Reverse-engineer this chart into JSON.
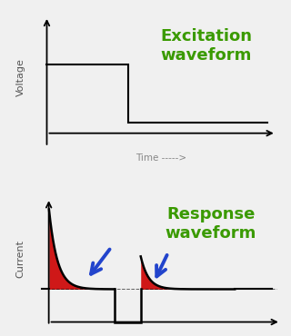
{
  "title_top": "Excitation\nwaveform",
  "title_bottom": "Response\nwaveform",
  "title_color": "#3a9a00",
  "title_fontsize": 13,
  "xlabel": "Time ----->",
  "xlabel_color": "#888888",
  "ylabel_top": "Voltage",
  "ylabel_bottom": "Current",
  "bg_color": "#f0f0f0",
  "line_color": "#000000",
  "fill_color": "#cc0000",
  "arrow_color": "#2244cc",
  "ylabel_color": "#555555",
  "ylabel_fontsize": 8
}
